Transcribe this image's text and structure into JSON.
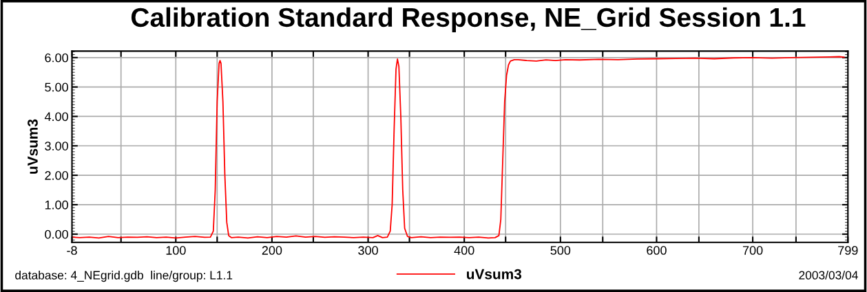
{
  "chart_data": {
    "type": "line",
    "title": "Calibration Standard Response, NE_Grid Session 1.1",
    "ylabel": "uVsum3",
    "annotations": [
      "database: 4_NEgrid.gdb  line/group: L1.1",
      "2003/03/04"
    ],
    "xlim": [
      -8,
      799
    ],
    "xticks": [
      -8,
      {
        "value": 43,
        "label": null
      },
      100,
      {
        "value": 143,
        "label": null
      },
      200,
      {
        "value": 243,
        "label": null
      },
      300,
      {
        "value": 343,
        "label": null
      },
      400,
      {
        "value": 443,
        "label": null
      },
      500,
      {
        "value": 544,
        "label": null
      },
      600,
      {
        "value": 644,
        "label": null
      },
      700,
      {
        "value": 745,
        "label": null
      },
      799
    ],
    "ylim": [
      -0.28,
      6.22
    ],
    "yticks": [
      {
        "value": 0,
        "label": "0.00"
      },
      {
        "value": 1,
        "label": "1.00"
      },
      {
        "value": 2,
        "label": "2.00"
      },
      {
        "value": 3,
        "label": "3.00"
      },
      {
        "value": 4,
        "label": "4.00"
      },
      {
        "value": 5,
        "label": "5.00"
      },
      {
        "value": 6,
        "label": "6.00"
      }
    ],
    "grid": true,
    "legend": "bottom",
    "marker": "none",
    "line_style": "solid",
    "series": [
      {
        "name": "uVsum3",
        "color": "#ff0000",
        "x": [
          -8,
          0,
          10,
          20,
          30,
          40,
          50,
          60,
          70,
          80,
          90,
          100,
          110,
          120,
          130,
          136,
          139,
          141,
          143,
          145,
          146,
          147,
          149,
          151,
          153,
          155,
          158,
          165,
          175,
          185,
          195,
          205,
          215,
          225,
          235,
          245,
          255,
          265,
          275,
          285,
          295,
          305,
          310,
          315,
          320,
          323,
          325,
          327,
          329,
          330.5,
          332,
          334,
          336,
          338,
          341,
          345,
          355,
          365,
          375,
          385,
          395,
          405,
          415,
          425,
          432,
          436,
          438,
          440,
          442,
          444,
          446,
          448,
          452,
          456,
          465,
          475,
          485,
          495,
          505,
          520,
          540,
          560,
          580,
          600,
          620,
          640,
          660,
          680,
          700,
          720,
          740,
          760,
          780,
          790,
          795
        ],
        "values": [
          -0.1,
          -0.12,
          -0.1,
          -0.13,
          -0.08,
          -0.12,
          -0.1,
          -0.11,
          -0.09,
          -0.12,
          -0.1,
          -0.13,
          -0.1,
          -0.08,
          -0.11,
          -0.1,
          0.1,
          1.5,
          4.5,
          5.8,
          5.9,
          5.8,
          4.5,
          2.0,
          0.4,
          -0.05,
          -0.12,
          -0.1,
          -0.13,
          -0.09,
          -0.12,
          -0.08,
          -0.1,
          -0.06,
          -0.1,
          -0.08,
          -0.11,
          -0.09,
          -0.1,
          -0.12,
          -0.1,
          -0.12,
          -0.05,
          -0.12,
          -0.1,
          0.1,
          1.0,
          3.5,
          5.6,
          5.95,
          5.7,
          4.0,
          1.5,
          0.2,
          -0.08,
          -0.12,
          -0.09,
          -0.12,
          -0.1,
          -0.11,
          -0.1,
          -0.12,
          -0.1,
          -0.13,
          -0.12,
          -0.05,
          0.5,
          2.5,
          4.5,
          5.4,
          5.75,
          5.88,
          5.93,
          5.93,
          5.9,
          5.88,
          5.92,
          5.9,
          5.93,
          5.92,
          5.94,
          5.93,
          5.95,
          5.96,
          5.97,
          5.98,
          5.96,
          5.99,
          6.0,
          5.98,
          6.0,
          6.01,
          6.02,
          6.03,
          6.01
        ]
      }
    ]
  }
}
